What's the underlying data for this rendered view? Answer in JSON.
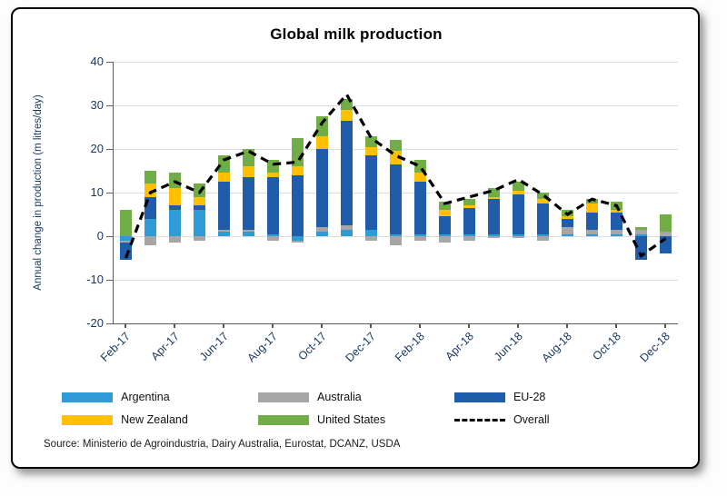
{
  "chart_data": {
    "type": "bar",
    "subtype": "stacked-bars-with-dashed-line-overlay",
    "title": "Global milk production",
    "xlabel": "",
    "ylabel": "Annual change in production (m litres/day)",
    "ylim": [
      -20,
      40
    ],
    "ytick_step": 10,
    "grid": true,
    "legend_position": "bottom",
    "categories": [
      "Feb-17",
      "Mar-17",
      "Apr-17",
      "May-17",
      "Jun-17",
      "Jul-17",
      "Aug-17",
      "Sep-17",
      "Oct-17",
      "Nov-17",
      "Dec-17",
      "Jan-18",
      "Feb-18",
      "Mar-18",
      "Apr-18",
      "May-18",
      "Jun-18",
      "Jul-18",
      "Aug-18",
      "Sep-18",
      "Oct-18",
      "Nov-18",
      "Dec-18"
    ],
    "x_tick_labels": [
      "Feb-17",
      "Apr-17",
      "Jun-17",
      "Aug-17",
      "Oct-17",
      "Dec-17",
      "Feb-18",
      "Apr-18",
      "Jun-18",
      "Aug-18",
      "Oct-18",
      "Dec-18"
    ],
    "series": [
      {
        "name": "Argentina",
        "color": "#2E9BD6",
        "values": [
          -1,
          4,
          6,
          6,
          1,
          1,
          0.5,
          -1,
          1,
          1.5,
          1.5,
          0.5,
          0.5,
          0.5,
          0.5,
          0.5,
          0.5,
          0.5,
          0.5,
          0.5,
          0.5,
          0.5,
          0
        ]
      },
      {
        "name": "Australia",
        "color": "#A6A6A6",
        "values": [
          -0.5,
          -2,
          -1.5,
          -1,
          0.5,
          0.5,
          -1,
          -0.5,
          1,
          1,
          -1,
          -2,
          -1,
          -1.5,
          -1,
          -0.5,
          -0.5,
          -1,
          1.5,
          1,
          1,
          1,
          1
        ]
      },
      {
        "name": "EU-28",
        "color": "#1F5CA9",
        "values": [
          -4,
          5,
          1,
          1,
          11,
          12,
          13,
          14,
          18,
          24,
          17,
          16,
          12,
          4,
          6,
          8,
          9,
          7,
          2,
          4,
          4,
          -5.5,
          -4
        ]
      },
      {
        "name": "New Zealand",
        "color": "#FFC000",
        "values": [
          0,
          3,
          4,
          2,
          2,
          2.5,
          1,
          2,
          3,
          2.5,
          2,
          3,
          2,
          1.5,
          0.5,
          0.5,
          1,
          1,
          0.5,
          2,
          0.5,
          0,
          0
        ]
      },
      {
        "name": "United States",
        "color": "#70AD47",
        "values": [
          6,
          3,
          3.5,
          3,
          4,
          4,
          3,
          6.5,
          4.5,
          2.5,
          2.5,
          2.5,
          3,
          2,
          1.5,
          2,
          2,
          1.5,
          1.5,
          1,
          2,
          0.5,
          4
        ]
      }
    ],
    "line_series": {
      "name": "Overall",
      "color": "#000000",
      "style": "dashed",
      "values": [
        -5,
        10,
        12.5,
        10,
        17.5,
        19.5,
        16.5,
        17,
        26,
        32.5,
        22.5,
        18.5,
        16,
        7.5,
        9,
        10.5,
        13,
        9.5,
        5,
        8.5,
        7,
        -4.5,
        -0.5
      ]
    }
  },
  "source_text": "Source: Ministerio de Agroindustria, Dairy Australia, Eurostat, DCANZ, USDA",
  "colors": {
    "axis_text": "#17375E",
    "gridline": "#DCDCDC",
    "axis_line": "#595959",
    "card_border": "#000000"
  }
}
